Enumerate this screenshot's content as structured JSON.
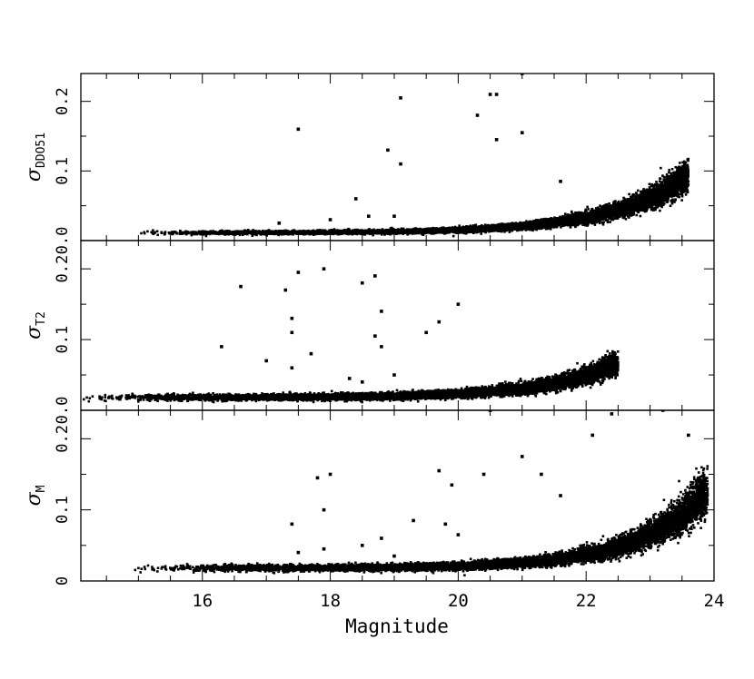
{
  "chart_data": [
    {
      "type": "scatter",
      "panel": "top",
      "ylabel_main": "σ",
      "ylabel_sub": "DDO51",
      "xlim": [
        14.1,
        24.0
      ],
      "ylim": [
        0.0,
        0.24
      ],
      "yticks": [
        0.0,
        0.1,
        0.2
      ],
      "ytick_labels": [
        "0.0",
        "0.1",
        "0.2"
      ],
      "yminor_step": 0.05,
      "floor": 0.011,
      "knee": 18.5,
      "growth": 0.83,
      "spread": 0.12,
      "mag_range": [
        14.9,
        23.6
      ],
      "density": 1.0,
      "outliers": [
        {
          "x": 17.5,
          "y": 0.16
        },
        {
          "x": 18.9,
          "y": 0.13
        },
        {
          "x": 19.1,
          "y": 0.11
        },
        {
          "x": 19.1,
          "y": 0.205
        },
        {
          "x": 20.3,
          "y": 0.18
        },
        {
          "x": 20.5,
          "y": 0.21
        },
        {
          "x": 20.6,
          "y": 0.21
        },
        {
          "x": 20.6,
          "y": 0.145
        },
        {
          "x": 21.0,
          "y": 0.155
        },
        {
          "x": 18.4,
          "y": 0.06
        },
        {
          "x": 18.0,
          "y": 0.03
        },
        {
          "x": 17.2,
          "y": 0.025
        },
        {
          "x": 18.6,
          "y": 0.035
        },
        {
          "x": 19.0,
          "y": 0.035
        },
        {
          "x": 21.6,
          "y": 0.085
        },
        {
          "x": 21.0,
          "y": 0.24
        }
      ]
    },
    {
      "type": "scatter",
      "panel": "middle",
      "ylabel_main": "σ",
      "ylabel_sub": "T2",
      "xlim": [
        14.1,
        24.0
      ],
      "ylim": [
        0.0,
        0.24
      ],
      "yticks": [
        0.0,
        0.1,
        0.2
      ],
      "ytick_labels": [
        "0.0",
        "0.1",
        "0.2"
      ],
      "yminor_step": 0.05,
      "floor": 0.018,
      "knee": 18.3,
      "growth": 0.88,
      "spread": 0.12,
      "mag_range": [
        14.1,
        22.5
      ],
      "density": 1.0,
      "outliers": [
        {
          "x": 16.3,
          "y": 0.09
        },
        {
          "x": 16.6,
          "y": 0.175
        },
        {
          "x": 17.3,
          "y": 0.17
        },
        {
          "x": 17.4,
          "y": 0.13
        },
        {
          "x": 17.5,
          "y": 0.195
        },
        {
          "x": 17.9,
          "y": 0.2
        },
        {
          "x": 17.4,
          "y": 0.11
        },
        {
          "x": 18.5,
          "y": 0.18
        },
        {
          "x": 18.7,
          "y": 0.19
        },
        {
          "x": 18.8,
          "y": 0.14
        },
        {
          "x": 19.5,
          "y": 0.11
        },
        {
          "x": 19.7,
          "y": 0.125
        },
        {
          "x": 20.0,
          "y": 0.15
        },
        {
          "x": 18.8,
          "y": 0.09
        },
        {
          "x": 18.7,
          "y": 0.105
        },
        {
          "x": 17.7,
          "y": 0.08
        },
        {
          "x": 17.0,
          "y": 0.07
        },
        {
          "x": 18.3,
          "y": 0.045
        },
        {
          "x": 18.5,
          "y": 0.04
        },
        {
          "x": 17.4,
          "y": 0.06
        },
        {
          "x": 19.0,
          "y": 0.05
        }
      ]
    },
    {
      "type": "scatter",
      "panel": "bottom",
      "ylabel_main": "σ",
      "ylabel_sub": "M",
      "xlabel": "Magnitude",
      "xlim": [
        14.1,
        24.0
      ],
      "ylim": [
        0.0,
        0.24
      ],
      "xticks": [
        16,
        18,
        20,
        22,
        24
      ],
      "xtick_labels": [
        "16",
        "18",
        "20",
        "22",
        "24"
      ],
      "xminor_step": 0.5,
      "yticks": [
        0.0,
        0.1,
        0.2
      ],
      "ytick_labels": [
        "0",
        "0.1",
        "0.2"
      ],
      "yminor_step": 0.05,
      "floor": 0.018,
      "knee": 19.0,
      "growth": 0.92,
      "spread": 0.13,
      "mag_range": [
        14.9,
        23.9
      ],
      "density": 1.0,
      "outliers": [
        {
          "x": 17.4,
          "y": 0.08
        },
        {
          "x": 17.8,
          "y": 0.145
        },
        {
          "x": 18.0,
          "y": 0.15
        },
        {
          "x": 17.9,
          "y": 0.1
        },
        {
          "x": 17.9,
          "y": 0.045
        },
        {
          "x": 18.5,
          "y": 0.05
        },
        {
          "x": 18.8,
          "y": 0.06
        },
        {
          "x": 19.3,
          "y": 0.085
        },
        {
          "x": 19.7,
          "y": 0.155
        },
        {
          "x": 19.9,
          "y": 0.135
        },
        {
          "x": 19.8,
          "y": 0.08
        },
        {
          "x": 20.4,
          "y": 0.15
        },
        {
          "x": 21.0,
          "y": 0.175
        },
        {
          "x": 21.3,
          "y": 0.15
        },
        {
          "x": 20.0,
          "y": 0.065
        },
        {
          "x": 19.0,
          "y": 0.035
        },
        {
          "x": 17.5,
          "y": 0.04
        },
        {
          "x": 22.4,
          "y": 0.235
        },
        {
          "x": 23.2,
          "y": 0.24
        },
        {
          "x": 23.6,
          "y": 0.205
        },
        {
          "x": 22.1,
          "y": 0.205
        },
        {
          "x": 21.6,
          "y": 0.12
        },
        {
          "x": 20.5,
          "y": 0.24
        }
      ]
    }
  ]
}
